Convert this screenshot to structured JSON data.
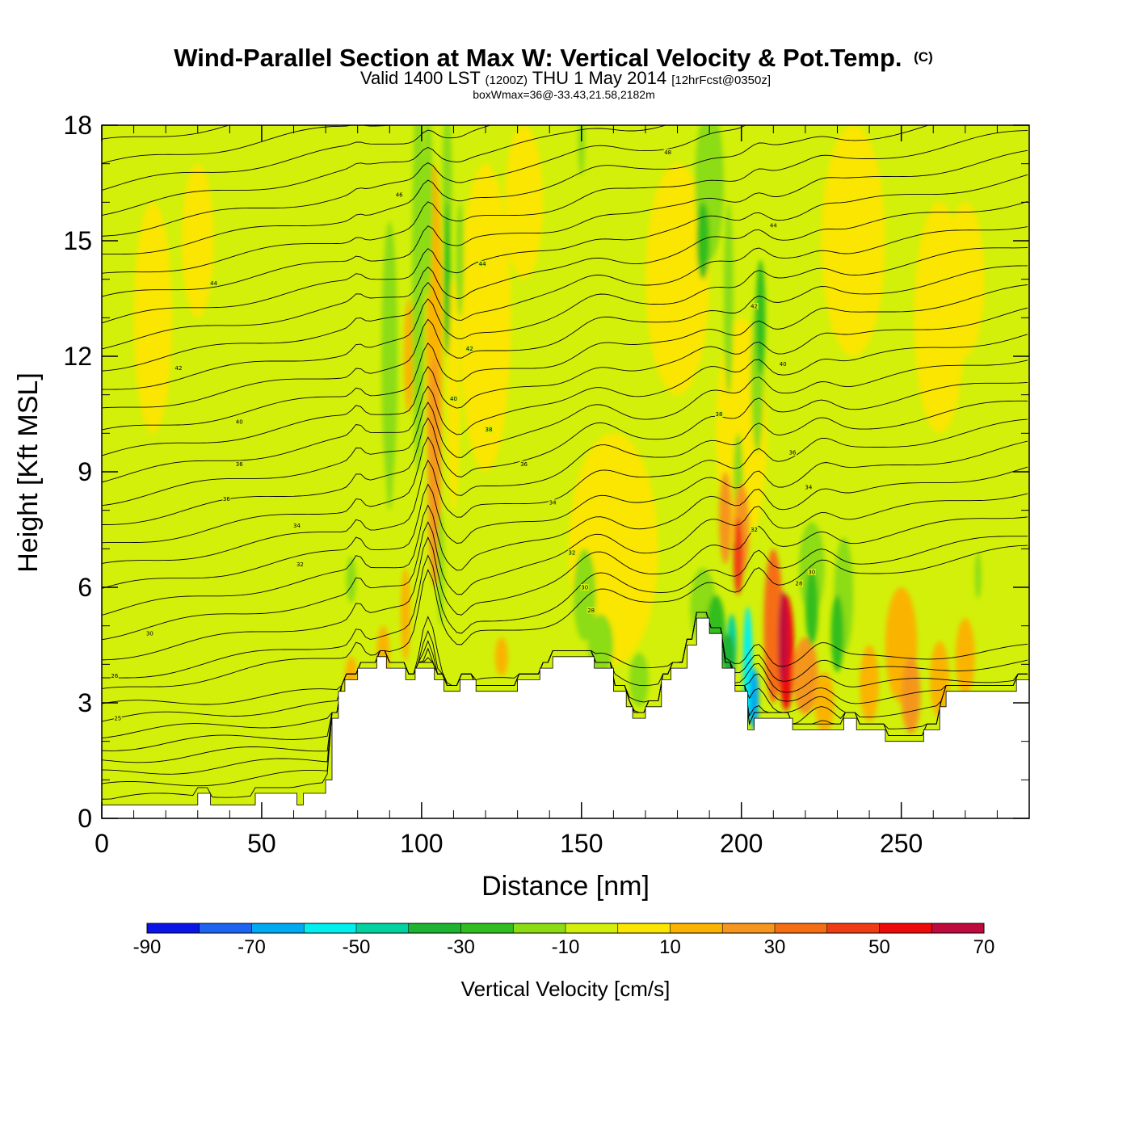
{
  "chart_data": {
    "type": "heatmap",
    "title": "Wind-Parallel Section at Max W: Vertical Velocity & Pot.Temp.",
    "copyright_mark": "(C)",
    "subtitle_main": "Valid 1400 LST",
    "subtitle_utc": "(1200Z)",
    "subtitle_date": "THU 1 May 2014",
    "subtitle_fcst": "[12hrFcst@0350z]",
    "subtitle_box": "boxWmax=36@-33.43,21.58,2182m",
    "xlabel": "Distance [nm]",
    "ylabel": "Height [Kft MSL]",
    "xlim": [
      0,
      290
    ],
    "ylim": [
      0,
      18
    ],
    "xticks": [
      "0",
      "50",
      "100",
      "150",
      "200",
      "250"
    ],
    "yticks": [
      "0",
      "3",
      "6",
      "9",
      "12",
      "15",
      "18"
    ],
    "colorbar": {
      "label": "Vertical Velocity [cm/s]",
      "tick_labels": [
        "-90",
        "-70",
        "-50",
        "-30",
        "-10",
        "10",
        "30",
        "50",
        "70"
      ],
      "levels": [
        -90,
        -80,
        -70,
        -60,
        -50,
        -40,
        -30,
        -20,
        -10,
        0,
        10,
        20,
        30,
        40,
        50,
        60,
        70
      ],
      "colors": [
        "#0a14e6",
        "#1e64f0",
        "#00aaf0",
        "#00f0f0",
        "#00d2a0",
        "#1eb432",
        "#32be1e",
        "#8cdc14",
        "#d2f00a",
        "#fae600",
        "#fab400",
        "#f5961e",
        "#f56e14",
        "#f03c14",
        "#ee0a0a",
        "#be0a3c"
      ]
    },
    "terrain_kft": [
      [
        0,
        0.35
      ],
      [
        30,
        0.35
      ],
      [
        30,
        0.65
      ],
      [
        34,
        0.65
      ],
      [
        34,
        0.35
      ],
      [
        48,
        0.35
      ],
      [
        48,
        0.65
      ],
      [
        61,
        0.65
      ],
      [
        61,
        0.35
      ],
      [
        63,
        0.35
      ],
      [
        63,
        0.65
      ],
      [
        70,
        0.65
      ],
      [
        70,
        1.0
      ],
      [
        72,
        1.0
      ],
      [
        72,
        2.6
      ],
      [
        74,
        2.6
      ],
      [
        74,
        3.3
      ],
      [
        76,
        3.3
      ],
      [
        76,
        3.6
      ],
      [
        80,
        3.6
      ],
      [
        80,
        3.9
      ],
      [
        86,
        3.9
      ],
      [
        86,
        4.2
      ],
      [
        89,
        4.2
      ],
      [
        89,
        3.9
      ],
      [
        95,
        3.9
      ],
      [
        95,
        3.6
      ],
      [
        98,
        3.6
      ],
      [
        98,
        3.9
      ],
      [
        104,
        3.9
      ],
      [
        104,
        3.6
      ],
      [
        107,
        3.6
      ],
      [
        107,
        3.3
      ],
      [
        112,
        3.3
      ],
      [
        112,
        3.6
      ],
      [
        117,
        3.6
      ],
      [
        117,
        3.3
      ],
      [
        130,
        3.3
      ],
      [
        130,
        3.6
      ],
      [
        137,
        3.6
      ],
      [
        137,
        3.9
      ],
      [
        141,
        3.9
      ],
      [
        141,
        4.2
      ],
      [
        154,
        4.2
      ],
      [
        154,
        3.9
      ],
      [
        160,
        3.9
      ],
      [
        160,
        3.3
      ],
      [
        164,
        3.3
      ],
      [
        164,
        2.9
      ],
      [
        166,
        2.9
      ],
      [
        166,
        2.6
      ],
      [
        170,
        2.6
      ],
      [
        170,
        2.9
      ],
      [
        175,
        2.9
      ],
      [
        175,
        3.6
      ],
      [
        178,
        3.6
      ],
      [
        178,
        3.9
      ],
      [
        183,
        3.9
      ],
      [
        183,
        4.5
      ],
      [
        186,
        4.5
      ],
      [
        186,
        5.2
      ],
      [
        190,
        5.2
      ],
      [
        190,
        4.8
      ],
      [
        194,
        4.8
      ],
      [
        194,
        3.9
      ],
      [
        198,
        3.9
      ],
      [
        198,
        3.3
      ],
      [
        202,
        3.3
      ],
      [
        202,
        2.3
      ],
      [
        204,
        2.3
      ],
      [
        204,
        2.6
      ],
      [
        216,
        2.6
      ],
      [
        216,
        2.3
      ],
      [
        232,
        2.3
      ],
      [
        232,
        2.6
      ],
      [
        236,
        2.6
      ],
      [
        236,
        2.3
      ],
      [
        245,
        2.3
      ],
      [
        245,
        2.0
      ],
      [
        257,
        2.0
      ],
      [
        257,
        2.3
      ],
      [
        262,
        2.3
      ],
      [
        262,
        2.9
      ],
      [
        264,
        2.9
      ],
      [
        264,
        3.3
      ],
      [
        286,
        3.3
      ],
      [
        286,
        3.6
      ],
      [
        290,
        3.6
      ]
    ],
    "theta_contour_labels": [
      {
        "text": "25",
        "x": 5,
        "y": 2.6
      },
      {
        "text": "26",
        "x": 4,
        "y": 3.7
      },
      {
        "text": "30",
        "x": 15,
        "y": 4.8
      },
      {
        "text": "32",
        "x": 62,
        "y": 6.6
      },
      {
        "text": "34",
        "x": 61,
        "y": 7.6
      },
      {
        "text": "36",
        "x": 39,
        "y": 8.3
      },
      {
        "text": "36",
        "x": 43,
        "y": 9.2
      },
      {
        "text": "40",
        "x": 43,
        "y": 10.3
      },
      {
        "text": "42",
        "x": 24,
        "y": 11.7
      },
      {
        "text": "44",
        "x": 35,
        "y": 13.9
      },
      {
        "text": "46",
        "x": 93,
        "y": 16.2
      },
      {
        "text": "44",
        "x": 119,
        "y": 14.4
      },
      {
        "text": "42",
        "x": 115,
        "y": 12.2
      },
      {
        "text": "40",
        "x": 110,
        "y": 10.9
      },
      {
        "text": "38",
        "x": 121,
        "y": 10.1
      },
      {
        "text": "36",
        "x": 132,
        "y": 9.2
      },
      {
        "text": "34",
        "x": 141,
        "y": 8.2
      },
      {
        "text": "32",
        "x": 147,
        "y": 6.9
      },
      {
        "text": "30",
        "x": 151,
        "y": 6.0
      },
      {
        "text": "28",
        "x": 153,
        "y": 5.4
      },
      {
        "text": "48",
        "x": 177,
        "y": 17.3
      },
      {
        "text": "44",
        "x": 210,
        "y": 15.4
      },
      {
        "text": "42",
        "x": 204,
        "y": 13.3
      },
      {
        "text": "40",
        "x": 213,
        "y": 11.8
      },
      {
        "text": "38",
        "x": 193,
        "y": 10.5
      },
      {
        "text": "36",
        "x": 216,
        "y": 9.5
      },
      {
        "text": "34",
        "x": 221,
        "y": 8.6
      },
      {
        "text": "32",
        "x": 204,
        "y": 7.5
      },
      {
        "text": "30",
        "x": 222,
        "y": 6.4
      },
      {
        "text": "28",
        "x": 218,
        "y": 6.1
      }
    ]
  }
}
